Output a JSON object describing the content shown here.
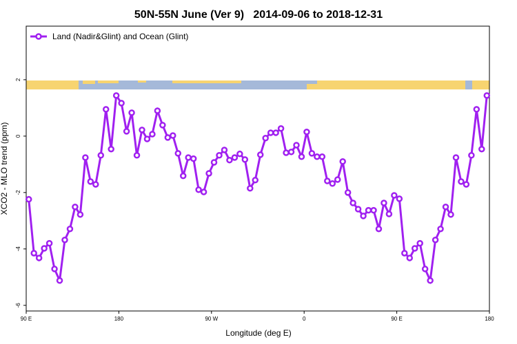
{
  "chart_data": {
    "type": "line",
    "title": "50N-55N June (Ver 9)   2014-09-06 to 2018-12-31",
    "x_label": "Longitude (deg E)",
    "y_label": "XCO2 - MLO trend (ppm)",
    "xlim": [
      90,
      540
    ],
    "xticks": [
      {
        "value": 90,
        "label": "90 E"
      },
      180,
      {
        "value": 270,
        "label": "90 W"
      },
      {
        "value": 360,
        "label": "0"
      },
      {
        "value": 450,
        "label": "90 E"
      },
      {
        "value": 540,
        "label": "180"
      }
    ],
    "ylim": [
      -6.2,
      3.9
    ],
    "yticks": [
      -6,
      -4,
      -2,
      0,
      2
    ],
    "legend": "top-left",
    "x": [
      92.5,
      97.5,
      102.5,
      107.5,
      112.5,
      117.5,
      122.5,
      127.5,
      132.5,
      137.5,
      142.5,
      147.5,
      152.5,
      157.5,
      162.5,
      167.5,
      172.5,
      177.5,
      182.5,
      187.5,
      192.5,
      197.5,
      202.5,
      207.5,
      212.5,
      217.5,
      222.5,
      227.5,
      232.5,
      237.5,
      242.5,
      247.5,
      252.5,
      257.5,
      262.5,
      267.5,
      272.5,
      277.5,
      282.5,
      287.5,
      292.5,
      297.5,
      302.5,
      307.5,
      312.5,
      317.5,
      322.5,
      327.5,
      332.5,
      337.5,
      342.5,
      347.5,
      352.5,
      357.5,
      362.5,
      367.5,
      372.5,
      377.5,
      382.5,
      387.5,
      392.5,
      397.5,
      402.5,
      407.5,
      412.5,
      417.5,
      422.5,
      427.5,
      432.5,
      437.5,
      442.5,
      447.5,
      452.5,
      457.5,
      462.5,
      467.5,
      472.5,
      477.5,
      482.5,
      487.5,
      492.5,
      497.5,
      502.5,
      507.5,
      512.5,
      517.5,
      522.5,
      527.5,
      532.5,
      537.5
    ],
    "series": [
      {
        "name": "Land (Nadir&Glint) and Ocean (Glint)",
        "color": "#a020f0",
        "values": [
          -2.24,
          -4.15,
          -4.32,
          -3.98,
          -3.8,
          -4.71,
          -5.12,
          -3.68,
          -3.29,
          -2.51,
          -2.78,
          -0.76,
          -1.61,
          -1.71,
          -0.68,
          0.95,
          -0.46,
          1.44,
          1.17,
          0.17,
          0.83,
          -0.68,
          0.22,
          -0.1,
          0.07,
          0.9,
          0.39,
          -0.05,
          0.02,
          -0.61,
          -1.41,
          -0.76,
          -0.8,
          -1.9,
          -1.98,
          -1.32,
          -0.93,
          -0.68,
          -0.49,
          -0.85,
          -0.76,
          -0.63,
          -0.83,
          -1.85,
          -1.56,
          -0.66,
          -0.07,
          0.12,
          0.12,
          0.27,
          -0.59,
          -0.56,
          -0.32,
          -0.73,
          0.15,
          -0.61,
          -0.73,
          -0.73,
          -1.59,
          -1.68,
          -1.54,
          -0.9,
          -2.0,
          -2.37,
          -2.59,
          -2.83,
          -2.63,
          -2.63,
          -3.29,
          -2.37,
          -2.76,
          -2.1,
          -2.22,
          -4.15,
          -4.32,
          -3.98,
          -3.8,
          -4.71,
          -5.12,
          -3.68,
          -3.29,
          -2.51,
          -2.78,
          -0.76,
          -1.61,
          -1.71,
          -0.68,
          0.95,
          -0.46,
          1.44
        ]
      }
    ]
  }
}
